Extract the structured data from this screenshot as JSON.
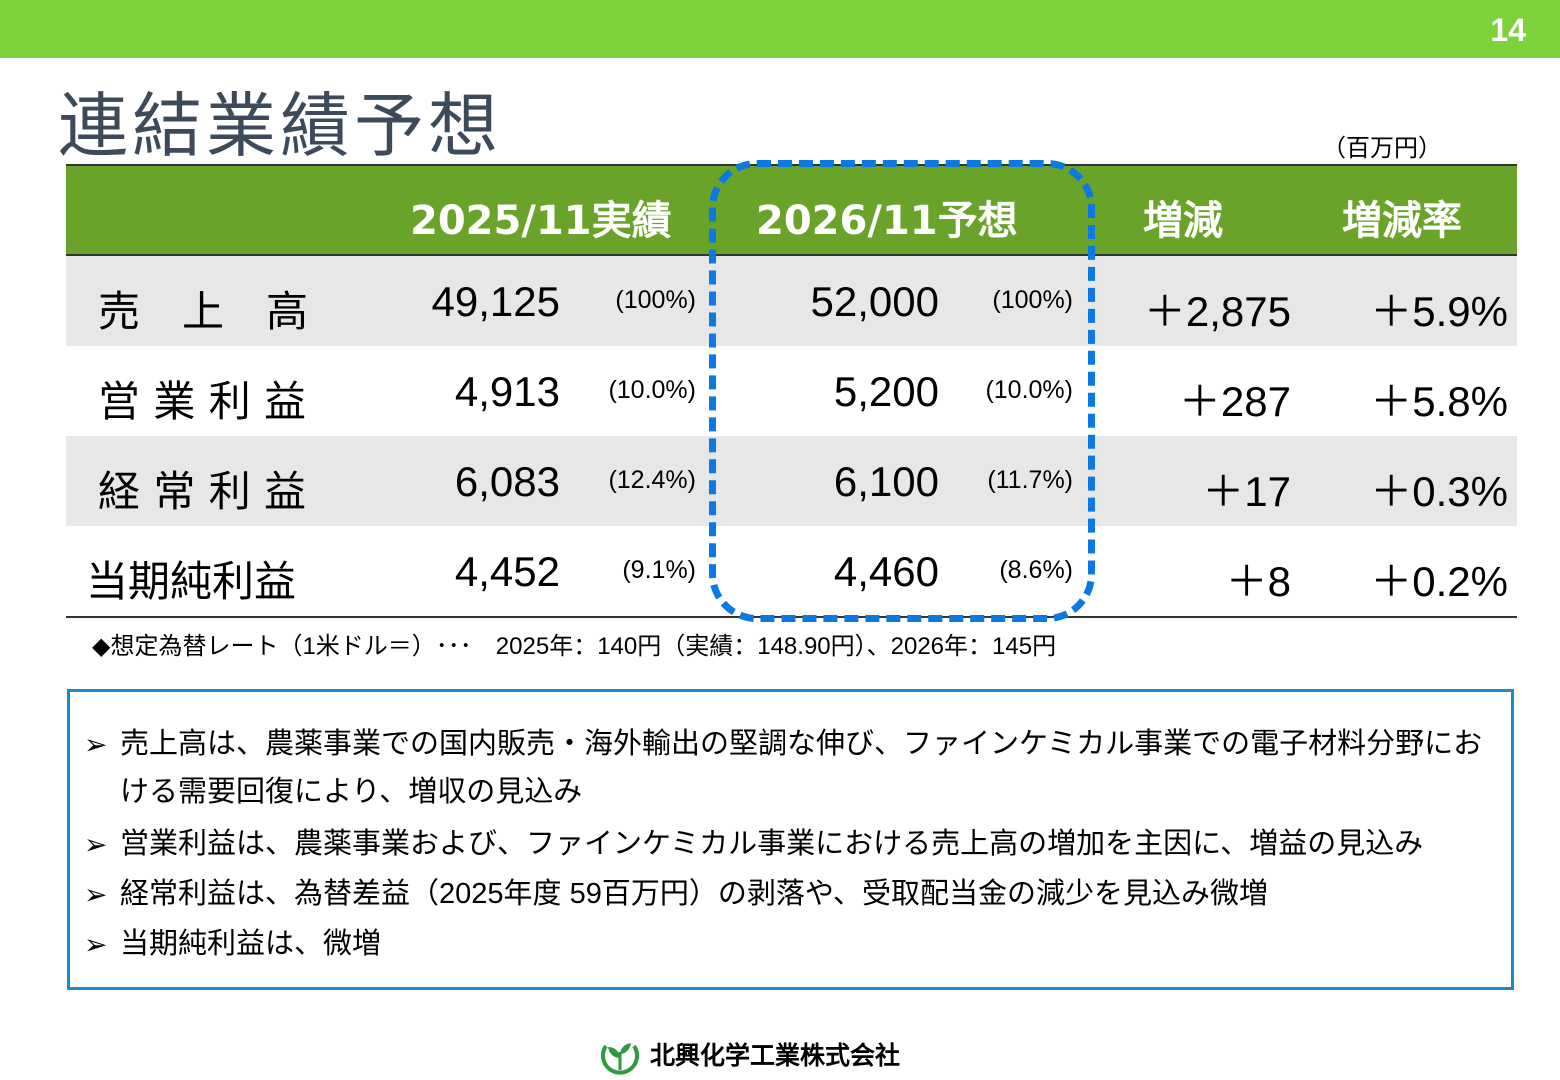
{
  "page_number": "14",
  "title": "連結業績予想",
  "unit": "（百万円）",
  "table": {
    "headers": {
      "actual": "2025/11実績",
      "forecast": "2026/11予想",
      "change": "増減",
      "change_rate": "増減率"
    },
    "rows": [
      {
        "label": "売　上　高",
        "actual": "49,125",
        "actual_pct": "(100%)",
        "forecast": "52,000",
        "forecast_pct": "(100%)",
        "change": "＋2,875",
        "rate": "＋5.9%"
      },
      {
        "label": "営 業 利 益",
        "actual": "4,913",
        "actual_pct": "(10.0%)",
        "forecast": "5,200",
        "forecast_pct": "(10.0%)",
        "change": "＋287",
        "rate": "＋5.8%"
      },
      {
        "label": "経 常 利 益",
        "actual": "6,083",
        "actual_pct": "(12.4%)",
        "forecast": "6,100",
        "forecast_pct": "(11.7%)",
        "change": "＋17",
        "rate": "＋0.3%"
      },
      {
        "label": "当期純利益",
        "actual": "4,452",
        "actual_pct": "(9.1%)",
        "forecast": "4,460",
        "forecast_pct": "(8.6%)",
        "change": "＋8",
        "rate": "＋0.2%"
      }
    ]
  },
  "fx_note": "◆想定為替レート（1米ドル＝）･･･　2025年：140円（実績：148.90円）、2026年：145円",
  "notes": {
    "bullet_symbol": "➢",
    "items": [
      "売上高は、農薬事業での国内販売・海外輸出の堅調な伸び、ファインケミカル事業での電子材料分野における需要回復により、増収の見込み",
      "営業利益は、農薬事業および、ファインケミカル事業における売上高の増加を主因に、増益の見込み",
      "経常利益は、為替差益（2025年度 59百万円）の剥落や、受取配当金の減少を見込み微増",
      "当期純利益は、微増"
    ]
  },
  "footer": {
    "company": "北興化学工業株式会社",
    "logo_icon": "leaf-logo-icon",
    "logo_color": "#2e9a3e"
  },
  "colors": {
    "top_bar": "#7dd23a",
    "header_green": "#6aa329",
    "row_shade": "#e7e7e7",
    "forecast_frame": "#0b78e3",
    "notes_border": "#1a8ad0",
    "title_text": "#3d4a5a"
  }
}
